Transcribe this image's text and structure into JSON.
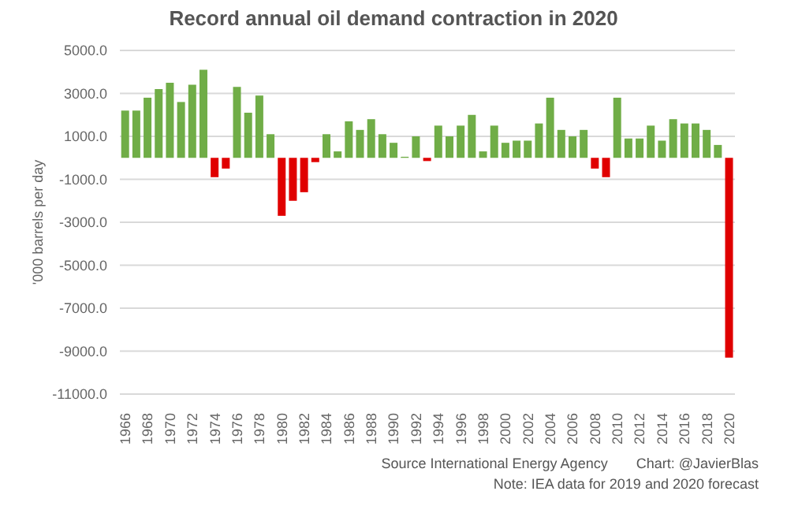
{
  "chart_data": {
    "type": "bar",
    "title": "Record annual oil demand contraction in 2020",
    "ylabel": "'000 barrels per day",
    "categories": [
      "1966",
      null,
      "1968",
      null,
      "1970",
      null,
      "1972",
      null,
      "1974",
      null,
      "1976",
      null,
      "1978",
      null,
      "1980",
      null,
      "1982",
      null,
      "1984",
      null,
      "1986",
      null,
      "1988",
      null,
      "1990",
      null,
      "1992",
      null,
      "1994",
      null,
      "1996",
      null,
      "1998",
      null,
      "2000",
      null,
      "2002",
      null,
      "2004",
      null,
      "2006",
      null,
      "2008",
      null,
      "2010",
      null,
      "2012",
      null,
      "2014",
      null,
      "2016",
      null,
      "2018",
      null,
      "2020"
    ],
    "values": [
      2200,
      2200,
      2800,
      3200,
      3500,
      2600,
      3400,
      4100,
      -900,
      -500,
      3300,
      2100,
      2900,
      1100,
      -2700,
      -2000,
      -1600,
      -200,
      1100,
      300,
      1700,
      1300,
      1800,
      1100,
      700,
      50,
      1000,
      -150,
      1500,
      1000,
      1500,
      2000,
      300,
      1500,
      700,
      800,
      800,
      1600,
      2800,
      1300,
      1000,
      1300,
      -500,
      -900,
      2800,
      900,
      900,
      1500,
      800,
      1800,
      1600,
      1600,
      1300,
      600,
      -9300
    ],
    "colors": [
      "#70ad47",
      "#70ad47",
      "#70ad47",
      "#70ad47",
      "#70ad47",
      "#70ad47",
      "#70ad47",
      "#70ad47",
      "#e00000",
      "#e00000",
      "#70ad47",
      "#70ad47",
      "#70ad47",
      "#70ad47",
      "#e00000",
      "#e00000",
      "#e00000",
      "#e00000",
      "#70ad47",
      "#70ad47",
      "#70ad47",
      "#70ad47",
      "#70ad47",
      "#70ad47",
      "#70ad47",
      "#70ad47",
      "#70ad47",
      "#e00000",
      "#70ad47",
      "#70ad47",
      "#70ad47",
      "#70ad47",
      "#70ad47",
      "#70ad47",
      "#70ad47",
      "#70ad47",
      "#70ad47",
      "#70ad47",
      "#70ad47",
      "#70ad47",
      "#70ad47",
      "#70ad47",
      "#e00000",
      "#e00000",
      "#70ad47",
      "#70ad47",
      "#70ad47",
      "#70ad47",
      "#70ad47",
      "#70ad47",
      "#70ad47",
      "#70ad47",
      "#70ad47",
      "#70ad47",
      "#e00000"
    ],
    "ylim": [
      -11000,
      5000
    ],
    "yticks": [
      {
        "value": -11000,
        "label": "-11000.0"
      },
      {
        "value": -9000,
        "label": "-9000.0"
      },
      {
        "value": -7000,
        "label": "-7000.0"
      },
      {
        "value": -5000,
        "label": "-5000.0"
      },
      {
        "value": -3000,
        "label": "-3000.0"
      },
      {
        "value": -1000,
        "label": "-1000.0"
      },
      {
        "value": 1000,
        "label": "1000.0"
      },
      {
        "value": 3000,
        "label": "3000.0"
      },
      {
        "value": 5000,
        "label": "5000.0"
      }
    ],
    "grid": "y",
    "annotations": [
      "Source International Energy Agency",
      "Chart: @JavierBlas",
      "Note: IEA data for 2019 and 2020 forecast"
    ]
  }
}
